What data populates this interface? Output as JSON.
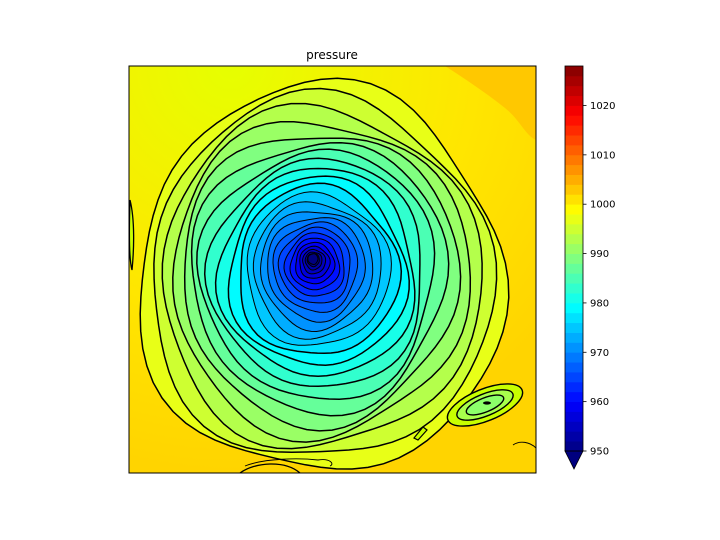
{
  "chart_data": {
    "type": "heatmap",
    "subtype": "filled-contour",
    "title": "pressure",
    "colormap": "jet",
    "value_range": [
      950,
      1028
    ],
    "center_min_value": 950,
    "background_value": 1000,
    "colorbar": {
      "orientation": "vertical",
      "ticks": [
        950,
        960,
        970,
        980,
        990,
        1000,
        1010,
        1020
      ],
      "extend": "min"
    },
    "grid": false,
    "axes_ticks_shown": false,
    "features": [
      {
        "name": "cyclone-center",
        "value": 950
      },
      {
        "name": "secondary-low-southeast",
        "value": 988
      }
    ]
  }
}
